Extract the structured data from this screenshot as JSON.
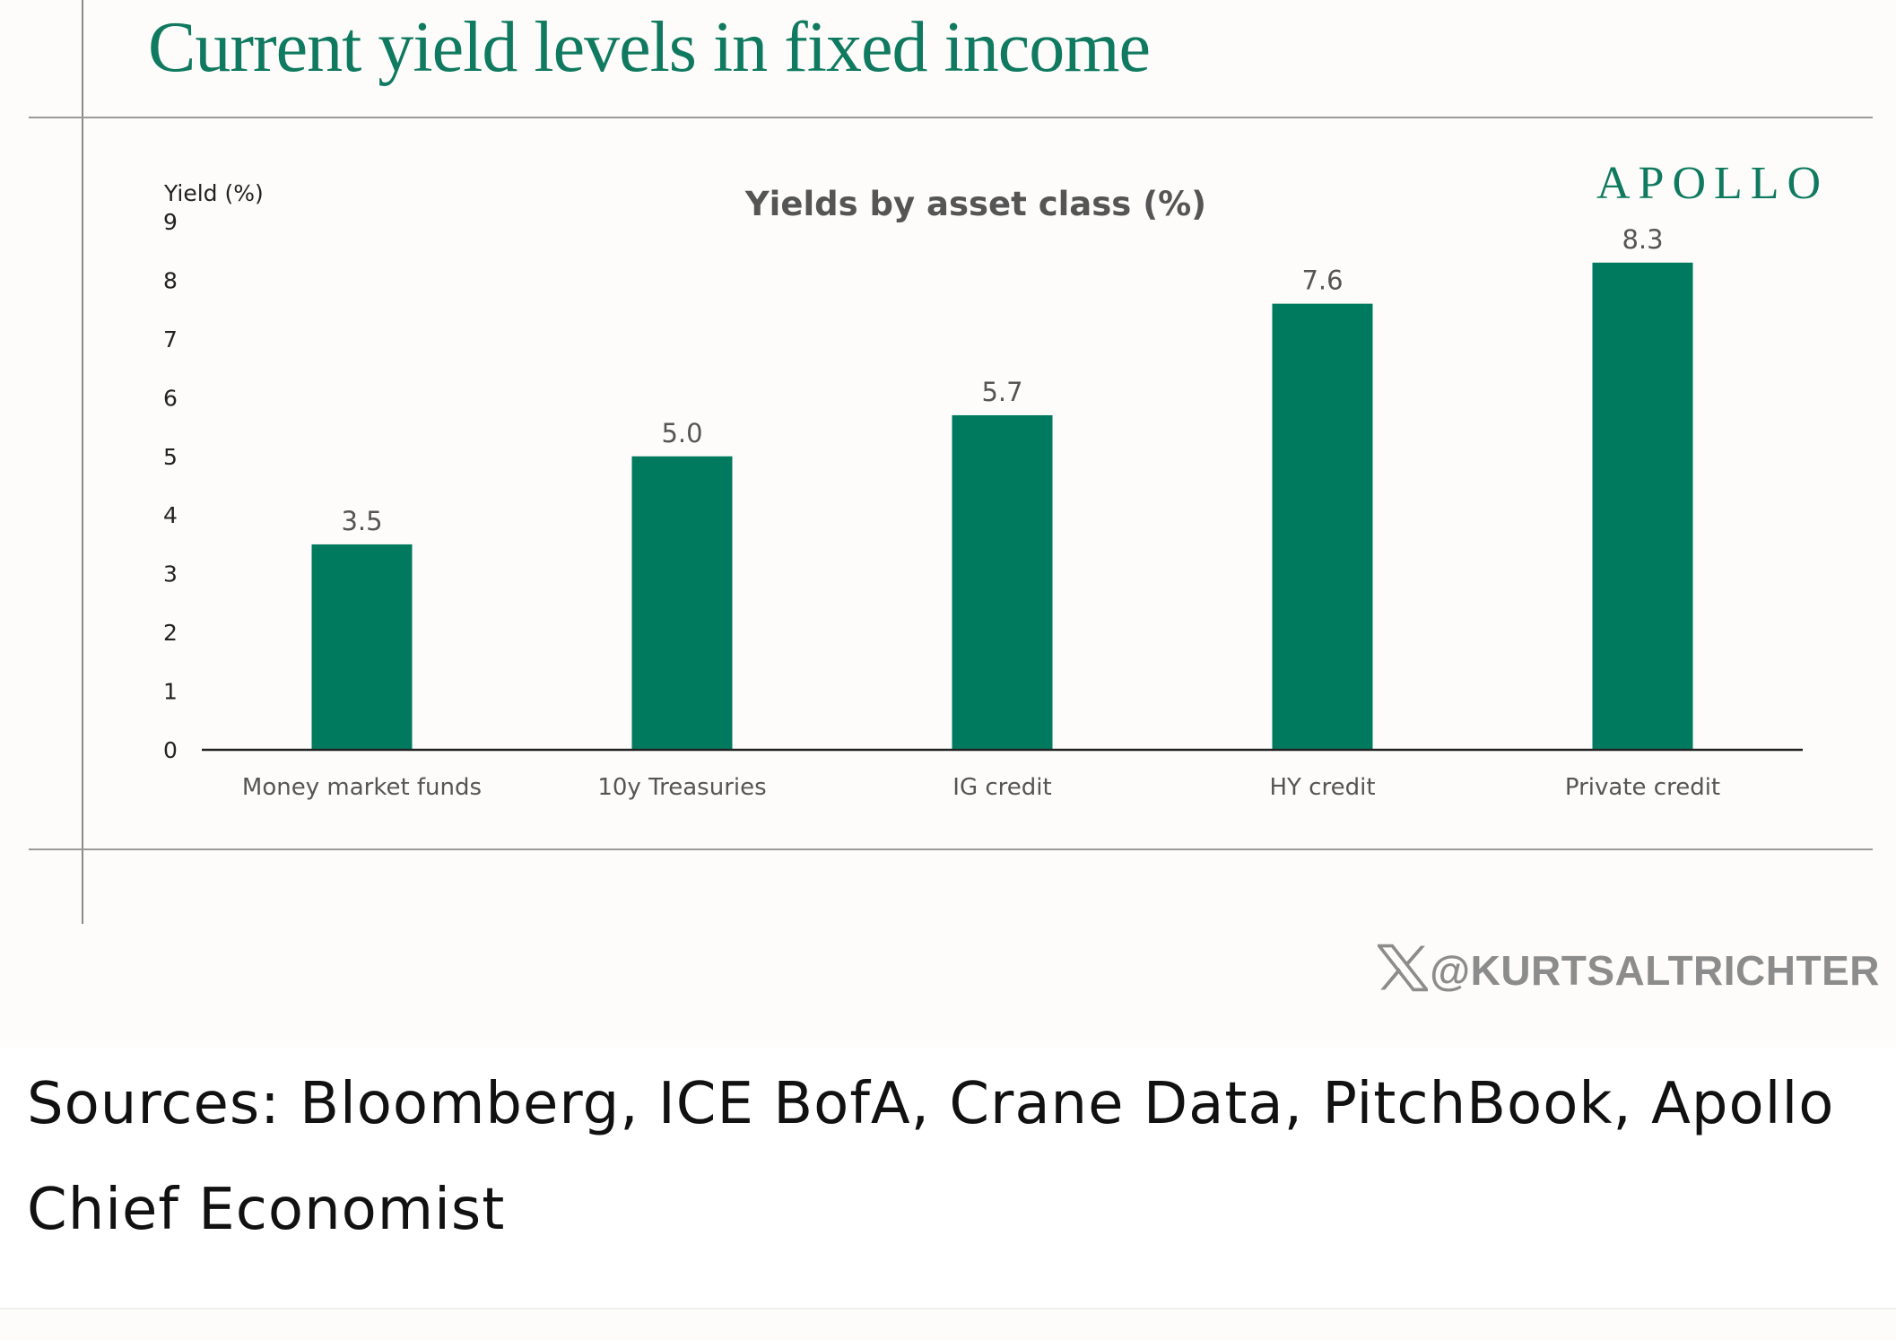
{
  "page_title": "Current yield levels in fixed income",
  "brand": "APOLLO",
  "social_handle": "@KURTSALTRICHTER",
  "social_icon": "x-logo-icon",
  "caption": "Sources: Bloomberg, ICE BofA, Crane Data, PitchBook, Apollo Chief Economist",
  "colors": {
    "bar": "#007a5e",
    "title": "#0f7a5f",
    "axis": "#222222",
    "label": "#555555"
  },
  "chart_data": {
    "type": "bar",
    "title": "Yields by asset class (%)",
    "ylabel": "Yield (%)",
    "xlabel": "",
    "categories": [
      "Money market funds",
      "10y Treasuries",
      "IG credit",
      "HY credit",
      "Private credit"
    ],
    "values": [
      3.5,
      5.0,
      5.7,
      7.6,
      8.3
    ],
    "data_labels": [
      "3.5",
      "5.0",
      "5.7",
      "7.6",
      "8.3"
    ],
    "yticks": [
      "0",
      "1",
      "2",
      "3",
      "4",
      "5",
      "6",
      "7",
      "8",
      "9"
    ],
    "ylim": [
      0,
      9
    ],
    "grid": false,
    "legend": "none"
  }
}
